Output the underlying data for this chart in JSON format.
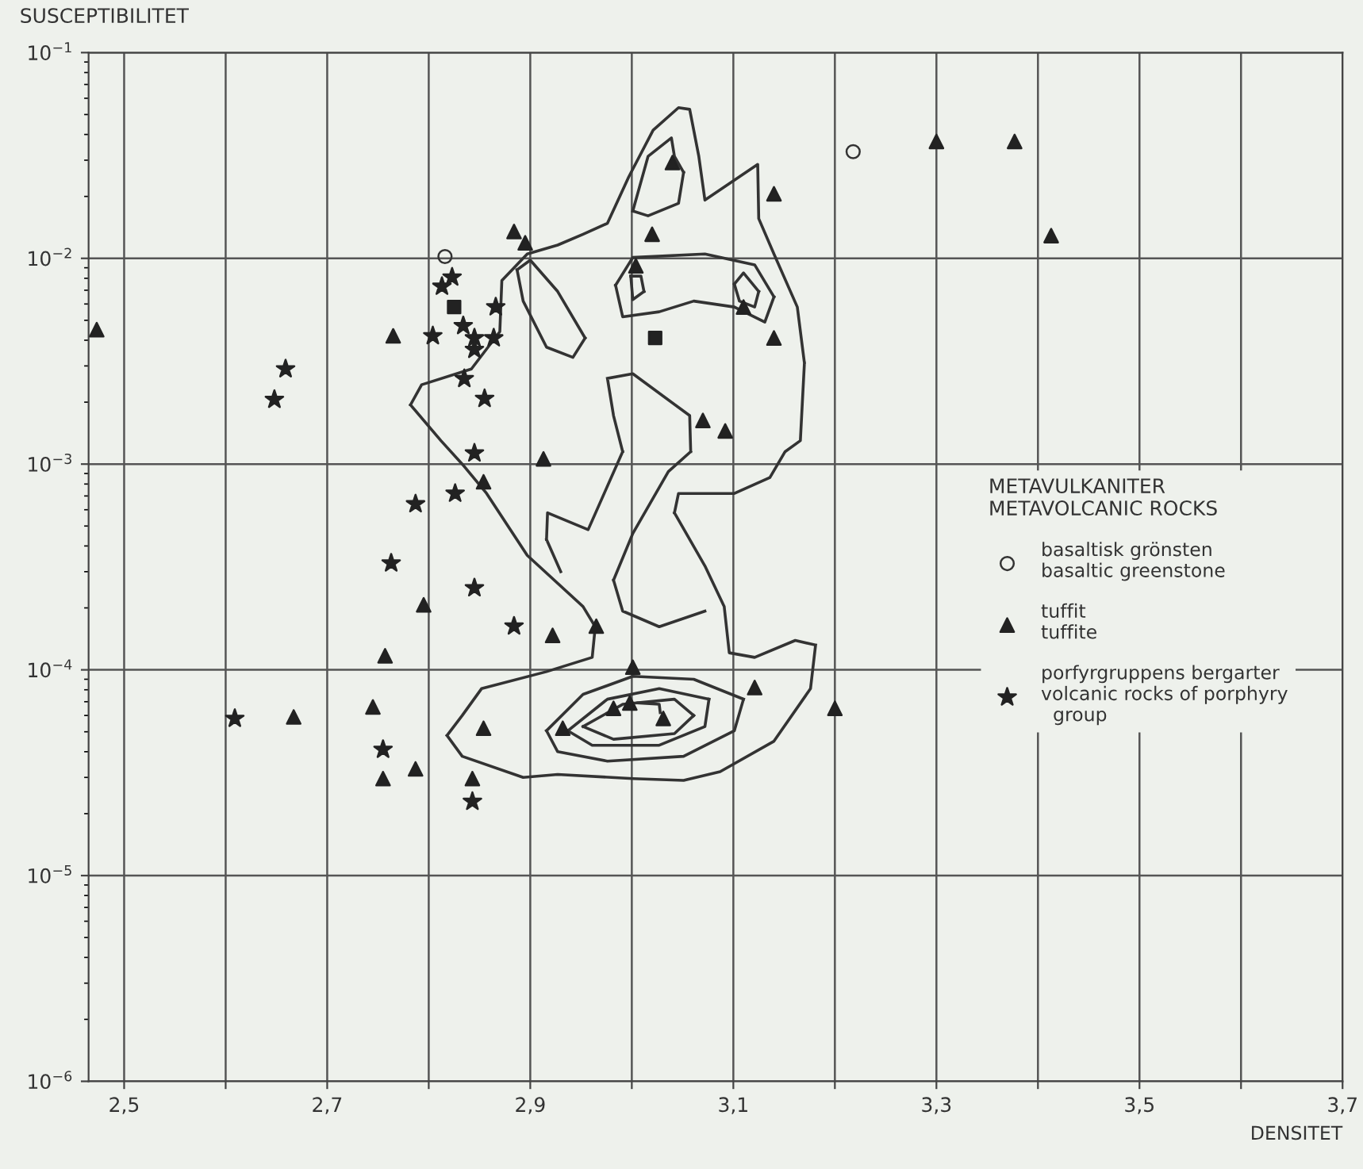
{
  "chart_data": {
    "type": "scatter",
    "ylabel": "SUSCEPTIBILITET",
    "xlabel": "DENSITET",
    "legend_title": "METAVULKANITER\nMETAVOLCANIC ROCKS",
    "legend": "bottom right",
    "log": "y",
    "grid": true,
    "xlim": [
      2.465,
      3.7
    ],
    "ylim": [
      1e-06,
      0.1
    ],
    "xticks": [
      {
        "value": 2.5,
        "label": "2,5"
      },
      {
        "value": 2.6,
        "label": null
      },
      {
        "value": 2.7,
        "label": "2,7"
      },
      {
        "value": 2.8,
        "label": null
      },
      {
        "value": 2.9,
        "label": "2,9"
      },
      {
        "value": 3.0,
        "label": null
      },
      {
        "value": 3.1,
        "label": "3,1"
      },
      {
        "value": 3.2,
        "label": null
      },
      {
        "value": 3.3,
        "label": "3,3"
      },
      {
        "value": 3.4,
        "label": null
      },
      {
        "value": 3.5,
        "label": "3,5"
      },
      {
        "value": 3.6,
        "label": null
      },
      {
        "value": 3.7,
        "label": "3,7"
      }
    ],
    "yticks": [
      {
        "value": 1e-06,
        "label": "10$^{−6}$"
      },
      {
        "value": 1e-05,
        "label": "10$^{−5}$"
      },
      {
        "value": 0.0001,
        "label": "10$^{−4}$"
      },
      {
        "value": 0.001,
        "label": "10$^{−3}$"
      },
      {
        "value": 0.01,
        "label": "10$^{−2}$"
      },
      {
        "value": 0.1,
        "label": "10$^{−1}$"
      }
    ],
    "series": [
      {
        "type": "line",
        "color": "#333333",
        "marker": "none",
        "x": [
          3.17,
          3.163,
          3.14,
          3.125,
          3.124,
          3.072,
          3.066,
          3.057,
          3.046,
          3.021,
          2.997,
          2.976,
          2.952,
          2.927,
          2.897,
          2.872,
          2.87,
          2.842,
          2.793,
          2.782,
          null,
          2.782,
          2.812,
          2.833,
          2.857,
          2.897,
          2.952,
          2.964,
          null,
          2.964,
          2.961,
          2.916,
          2.852,
          2.833,
          2.818,
          null,
          2.818,
          2.833,
          2.893,
          2.927,
          3.001,
          3.051,
          3.087,
          3.14,
          3.176,
          3.181,
          null,
          3.181,
          3.161,
          3.121,
          3.096,
          3.091,
          3.072,
          3.042,
          null,
          3.042,
          3.046,
          3.101,
          3.136,
          3.151,
          3.166,
          3.17
        ],
        "values": [
          0.0031,
          0.0058,
          0.0105,
          0.0156,
          0.0286,
          0.0192,
          0.0313,
          0.053,
          0.054,
          0.042,
          0.0249,
          0.0148,
          0.0131,
          0.0116,
          0.0105,
          0.0078,
          0.0044,
          0.0029,
          0.00243,
          0.00194,
          null,
          0.00194,
          0.0013,
          0.001,
          0.00072,
          0.00036,
          0.000203,
          0.000162,
          null,
          0.000162,
          0.000115,
          9.8e-05,
          8.1e-05,
          6e-05,
          4.8e-05,
          null,
          4.8e-05,
          3.8e-05,
          3e-05,
          3.1e-05,
          2.96e-05,
          2.9e-05,
          3.2e-05,
          4.5e-05,
          8.1e-05,
          0.000132,
          null,
          0.000132,
          0.000139,
          0.000115,
          0.000121,
          0.000203,
          0.00032,
          0.00058,
          null,
          0.00058,
          0.00072,
          0.00072,
          0.00086,
          0.00115,
          0.0013,
          0.0031
        ]
      },
      {
        "type": "line",
        "color": "#333333",
        "marker": "none",
        "x": [
          2.916,
          2.952,
          3.001,
          3.061,
          3.11
        ],
        "values": [
          5.06e-05,
          7.6e-05,
          9.3e-05,
          9e-05,
          7.2e-05
        ]
      },
      {
        "type": "line",
        "color": "#333333",
        "marker": "none",
        "x": [
          3.11,
          3.101,
          3.051,
          2.976,
          2.927,
          2.916
        ],
        "values": [
          7.2e-05,
          5.06e-05,
          3.8e-05,
          3.6e-05,
          4e-05,
          5.06e-05
        ]
      },
      {
        "type": "line",
        "color": "#333333",
        "marker": "none",
        "x": [
          2.937,
          2.976,
          3.027,
          3.076
        ],
        "values": [
          5.06e-05,
          7.2e-05,
          8.1e-05,
          7.2e-05
        ]
      },
      {
        "type": "line",
        "color": "#333333",
        "marker": "none",
        "x": [
          3.076,
          3.072,
          3.027,
          2.961,
          2.937
        ],
        "values": [
          7.2e-05,
          5.3e-05,
          4.3e-05,
          4.3e-05,
          5.06e-05
        ]
      },
      {
        "type": "line",
        "color": "#333333",
        "marker": "none",
        "x": [
          2.952,
          2.991,
          3.042,
          3.061
        ],
        "values": [
          5.3e-05,
          6.8e-05,
          7.2e-05,
          6e-05
        ]
      },
      {
        "type": "line",
        "color": "#333333",
        "marker": "none",
        "x": [
          3.061,
          3.042,
          2.982,
          2.952
        ],
        "values": [
          6e-05,
          4.9e-05,
          4.6e-05,
          5.3e-05
        ]
      },
      {
        "type": "line",
        "color": "#333333",
        "marker": "none",
        "x": [
          3.006,
          3.027,
          3.028
        ],
        "values": [
          6.9e-05,
          6.8e-05,
          6.2e-05
        ]
      },
      {
        "type": "line",
        "color": "#333333",
        "marker": "none",
        "x": [
          2.984,
          3.001,
          3.072,
          3.121,
          3.14
        ],
        "values": [
          0.0074,
          0.0101,
          0.0105,
          0.0093,
          0.0065
        ]
      },
      {
        "type": "line",
        "color": "#333333",
        "marker": "none",
        "x": [
          3.14,
          3.131,
          3.101,
          3.061,
          3.027,
          2.991,
          2.984
        ],
        "values": [
          0.0065,
          0.0049,
          0.0058,
          0.0062,
          0.0055,
          0.0052,
          0.0074
        ]
      },
      {
        "type": "line",
        "color": "#333333",
        "marker": "none",
        "x": [
          2.999,
          3.009,
          3.012
        ],
        "values": [
          0.0082,
          0.0082,
          0.0069
        ]
      },
      {
        "type": "line",
        "color": "#333333",
        "marker": "none",
        "x": [
          3.012,
          3.001,
          2.999
        ],
        "values": [
          0.0069,
          0.0063,
          0.0082
        ]
      },
      {
        "type": "line",
        "color": "#333333",
        "marker": "none",
        "x": [
          3.101,
          3.11,
          3.125
        ],
        "values": [
          0.0075,
          0.0085,
          0.0069
        ]
      },
      {
        "type": "line",
        "color": "#333333",
        "marker": "none",
        "x": [
          3.125,
          3.121,
          3.106,
          3.101
        ],
        "values": [
          0.0069,
          0.0058,
          0.0062,
          0.0075
        ]
      },
      {
        "type": "line",
        "color": "#333333",
        "marker": "none",
        "x": [
          3.001,
          3.016,
          3.039,
          3.042,
          3.051
        ],
        "values": [
          0.017,
          0.0313,
          0.0385,
          0.0313,
          0.0262
        ]
      },
      {
        "type": "line",
        "color": "#333333",
        "marker": "none",
        "x": [
          3.051,
          3.046,
          3.016,
          3.001
        ],
        "values": [
          0.0262,
          0.0185,
          0.0161,
          0.017
        ]
      },
      {
        "type": "line",
        "color": "#333333",
        "marker": "none",
        "x": [
          2.887,
          2.9,
          2.927,
          2.954
        ],
        "values": [
          0.0088,
          0.0098,
          0.0069,
          0.0041
        ]
      },
      {
        "type": "line",
        "color": "#333333",
        "marker": "none",
        "x": [
          2.954,
          2.942,
          2.916,
          2.893,
          2.887
        ],
        "values": [
          0.0041,
          0.0033,
          0.0037,
          0.0062,
          0.0088
        ]
      },
      {
        "type": "line",
        "color": "#333333",
        "marker": "none",
        "x": [
          2.93,
          2.916,
          null,
          2.916,
          2.917,
          2.957,
          2.991,
          null,
          2.991,
          2.982,
          2.976,
          null,
          2.976,
          3.001,
          3.057,
          3.058,
          null,
          3.058,
          3.036,
          3.001,
          2.982,
          null,
          2.982,
          2.991,
          3.027,
          3.072
        ],
        "values": [
          0.0003,
          0.00043,
          null,
          0.00043,
          0.00058,
          0.00048,
          0.00115,
          null,
          0.00115,
          0.00172,
          0.00261,
          null,
          0.00261,
          0.00275,
          0.00172,
          0.00115,
          null,
          0.00115,
          0.00092,
          0.00046,
          0.000273,
          null,
          0.000273,
          0.000193,
          0.000162,
          0.000193
        ]
      },
      {
        "name": "basaltisk grönsten\nbasaltic greenstone",
        "color": "#333333",
        "marker": "circle",
        "x": [
          2.816,
          3.218
        ],
        "values": [
          0.0102,
          0.033
        ]
      },
      {
        "name": "tuffit\ntuffite",
        "color": "#222222",
        "marker": "triangle",
        "x": [
          2.473,
          2.884,
          2.895,
          2.765,
          2.913,
          3.04,
          3.02,
          3.14,
          3.3,
          3.004,
          3.11,
          3.14,
          3.07,
          3.092,
          3.377,
          3.413,
          2.854,
          2.795,
          2.922,
          2.757,
          2.745,
          2.667,
          2.854,
          2.787,
          2.755,
          2.843,
          2.965,
          3.001,
          3.121,
          3.2,
          2.982,
          2.998,
          3.031,
          2.932
        ],
        "values": [
          0.0045,
          0.0135,
          0.0119,
          0.0042,
          0.00106,
          0.0292,
          0.0131,
          0.0206,
          0.037,
          0.0092,
          0.0058,
          0.0041,
          0.00163,
          0.00145,
          0.037,
          0.0129,
          0.00082,
          0.000207,
          0.000147,
          0.000117,
          6.6e-05,
          5.9e-05,
          5.2e-05,
          3.3e-05,
          2.96e-05,
          2.96e-05,
          0.000163,
          0.000103,
          8.2e-05,
          6.5e-05,
          6.5e-05,
          6.9e-05,
          5.8e-05,
          5.2e-05
        ]
      },
      {
        "name": "porfyrgruppens bergarter\nvolcanic rocks of porphyry\n  group",
        "color": "#222222",
        "marker": "star",
        "x": [
          2.823,
          2.813,
          2.866,
          2.804,
          2.834,
          2.845,
          2.845,
          2.864,
          2.659,
          2.648,
          2.835,
          2.855,
          2.845,
          2.826,
          2.787,
          2.763,
          2.845,
          2.884,
          2.609,
          2.755,
          2.843
        ],
        "values": [
          0.0081,
          0.0073,
          0.0058,
          0.0042,
          0.0047,
          0.0041,
          0.0036,
          0.0041,
          0.0029,
          0.00206,
          0.0026,
          0.00208,
          0.00113,
          0.00072,
          0.00064,
          0.00033,
          0.00025,
          0.000163,
          5.8e-05,
          4.1e-05,
          2.29e-05
        ]
      },
      {
        "color": "#222222",
        "marker": "square",
        "x": [
          2.825,
          3.023
        ],
        "values": [
          0.0058,
          0.0041
        ]
      }
    ]
  }
}
